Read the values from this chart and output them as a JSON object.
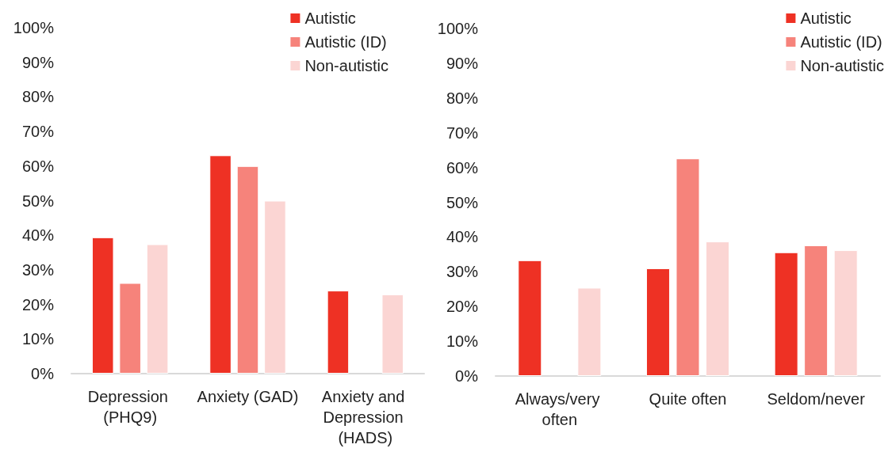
{
  "chart_data": [
    {
      "type": "bar",
      "categories": [
        "Depression (PHQ9)",
        "Anxiety (GAD)",
        "Anxiety and Depression (HADS)"
      ],
      "series": [
        {
          "name": "Autistic",
          "color": "#ee3124",
          "values": [
            39.4,
            63.1,
            24
          ]
        },
        {
          "name": "Autistic (ID)",
          "color": "#f6837b",
          "values": [
            26.2,
            60,
            null
          ]
        },
        {
          "name": "Non-autistic",
          "color": "#fbd5d3",
          "values": [
            37.4,
            50,
            22.9
          ]
        }
      ],
      "ylim": [
        0,
        100
      ],
      "yticks": [
        {
          "value": 0,
          "label": "0%"
        },
        {
          "value": 10,
          "label": "10%"
        },
        {
          "value": 20,
          "label": "20%"
        },
        {
          "value": 30,
          "label": "30%"
        },
        {
          "value": 40,
          "label": "40%"
        },
        {
          "value": 50,
          "label": "50%"
        },
        {
          "value": 60,
          "label": "60%"
        },
        {
          "value": 70,
          "label": "70%"
        },
        {
          "value": 80,
          "label": "80%"
        },
        {
          "value": 90,
          "label": "90%"
        },
        {
          "value": 100,
          "label": "100%"
        }
      ],
      "grid": false,
      "legend": "top right"
    },
    {
      "type": "bar",
      "categories": [
        "Always/very often",
        "Quite often",
        "Seldom/never"
      ],
      "series": [
        {
          "name": "Autistic",
          "color": "#ee3124",
          "values": [
            33.3,
            31,
            35.6
          ]
        },
        {
          "name": "Autistic (ID)",
          "color": "#f6837b",
          "values": [
            null,
            62.6,
            37.6
          ]
        },
        {
          "name": "Non-autistic",
          "color": "#fbd5d3",
          "values": [
            25.4,
            38.7,
            36.2
          ]
        }
      ],
      "ylim": [
        0,
        100
      ],
      "yticks": [
        {
          "value": 0,
          "label": "0%"
        },
        {
          "value": 10,
          "label": "10%"
        },
        {
          "value": 20,
          "label": "20%"
        },
        {
          "value": 30,
          "label": "30%"
        },
        {
          "value": 40,
          "label": "40%"
        },
        {
          "value": 50,
          "label": "50%"
        },
        {
          "value": 60,
          "label": "60%"
        },
        {
          "value": 70,
          "label": "70%"
        },
        {
          "value": 80,
          "label": "80%"
        },
        {
          "value": 90,
          "label": "90%"
        },
        {
          "value": 100,
          "label": "100%"
        }
      ],
      "grid": false,
      "legend": "top right"
    }
  ]
}
